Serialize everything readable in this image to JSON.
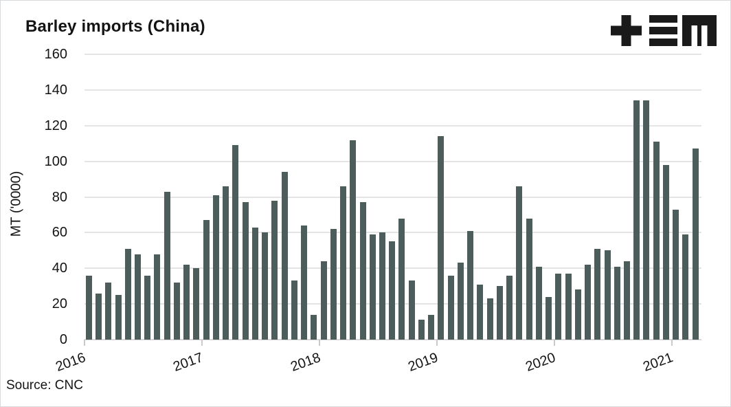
{
  "header": {
    "title": "Barley imports (China)",
    "logo_icon": "plus-equals-m-logo",
    "logo_color": "#1a1a1a"
  },
  "footer": {
    "source": "Source: CNC"
  },
  "colors": {
    "bar": "#4d5d5c",
    "gridline": "#e4e4e4",
    "baseline": "#d7d7d7",
    "text": "#141414"
  },
  "chart_data": {
    "type": "bar",
    "title": "Barley imports (China)",
    "ylabel": "MT ('0000)",
    "xlabel": "",
    "source": "Source: CNC",
    "frequency": "monthly",
    "ylim": [
      0,
      160
    ],
    "yticks": [
      0,
      20,
      40,
      60,
      80,
      100,
      120,
      140,
      160
    ],
    "x_tick_labels": [
      "2016",
      "2017",
      "2018",
      "2019",
      "2020",
      "2021"
    ],
    "grid": "horizontal",
    "legend_position": "none",
    "bar_color": "#4d5d5c",
    "years": [
      {
        "year": "2016",
        "values": [
          36,
          26,
          32,
          25,
          51,
          48,
          36,
          48,
          83,
          32,
          42,
          40
        ]
      },
      {
        "year": "2017",
        "values": [
          67,
          81,
          86,
          109,
          77,
          63,
          60,
          78,
          94,
          33,
          64,
          14
        ]
      },
      {
        "year": "2018",
        "values": [
          44,
          62,
          86,
          112,
          77,
          59,
          60,
          55,
          68,
          33,
          11,
          14
        ]
      },
      {
        "year": "2019",
        "values": [
          114,
          36,
          43,
          61,
          31,
          23,
          30,
          36,
          86,
          68,
          41,
          24
        ]
      },
      {
        "year": "2020",
        "values": [
          37,
          37,
          28,
          42,
          51,
          50,
          41,
          44,
          134,
          134,
          111,
          98
        ]
      },
      {
        "year": "2021",
        "values": [
          73,
          59,
          107
        ]
      }
    ]
  }
}
